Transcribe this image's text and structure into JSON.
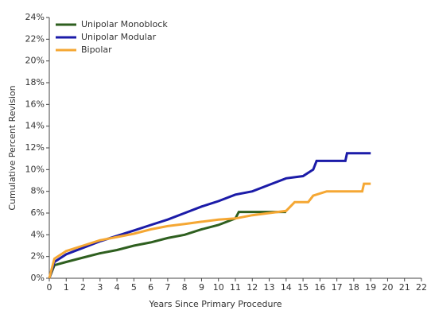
{
  "chart_data": {
    "type": "line",
    "x_label": "Years Since Primary Procedure",
    "y_label": "Cumulative Percent Revision",
    "xlim": [
      0,
      22
    ],
    "xticks": [
      0,
      1,
      2,
      3,
      4,
      5,
      6,
      7,
      8,
      9,
      10,
      11,
      12,
      13,
      14,
      15,
      16,
      17,
      18,
      19,
      20,
      21,
      22
    ],
    "ylim": [
      0,
      24
    ],
    "yticks": [
      {
        "value": 0,
        "label": "0%"
      },
      {
        "value": 2,
        "label": "2%"
      },
      {
        "value": 4,
        "label": "4%"
      },
      {
        "value": 6,
        "label": "6%"
      },
      {
        "value": 8,
        "label": "8%"
      },
      {
        "value": 10,
        "label": "10%"
      },
      {
        "value": 12,
        "label": "12%"
      },
      {
        "value": 14,
        "label": "14%"
      },
      {
        "value": 16,
        "label": "16%"
      },
      {
        "value": 18,
        "label": "18%"
      },
      {
        "value": 20,
        "label": "20%"
      },
      {
        "value": 22,
        "label": "22%"
      },
      {
        "value": 24,
        "label": "24%"
      }
    ],
    "legend": "top-left",
    "series": [
      {
        "name": "Unipolar Monoblock",
        "color": "#2e5f1f",
        "x": [
          0,
          0.3,
          1,
          2,
          3,
          4,
          5,
          6,
          7,
          8,
          9,
          10,
          11,
          11.2,
          14
        ],
        "values": [
          0,
          1.2,
          1.5,
          1.9,
          2.3,
          2.6,
          3.0,
          3.3,
          3.7,
          4.0,
          4.5,
          4.9,
          5.5,
          6.1,
          6.1
        ]
      },
      {
        "name": "Unipolar Modular",
        "color": "#1b1ba8",
        "x": [
          0,
          0.3,
          1,
          2,
          3,
          4,
          5,
          6,
          7,
          8,
          9,
          10,
          11,
          12,
          13,
          14,
          15,
          15.6,
          15.8,
          17.5,
          17.6,
          19
        ],
        "values": [
          0,
          1.5,
          2.2,
          2.8,
          3.4,
          3.9,
          4.4,
          4.9,
          5.4,
          6.0,
          6.6,
          7.1,
          7.7,
          8.0,
          8.6,
          9.2,
          9.4,
          10.0,
          10.8,
          10.8,
          11.5,
          11.5
        ]
      },
      {
        "name": "Bipolar",
        "color": "#f5a733",
        "x": [
          0,
          0.3,
          1,
          2,
          3,
          4,
          5,
          6,
          7,
          8,
          9,
          10,
          11,
          12,
          13,
          14,
          14.5,
          15.3,
          15.6,
          16.4,
          18.5,
          18.6,
          19
        ],
        "values": [
          0,
          1.8,
          2.5,
          3.0,
          3.5,
          3.8,
          4.1,
          4.5,
          4.8,
          5.0,
          5.2,
          5.4,
          5.5,
          5.8,
          6.0,
          6.2,
          7.0,
          7.0,
          7.6,
          8.0,
          8.0,
          8.7,
          8.7
        ]
      }
    ]
  }
}
